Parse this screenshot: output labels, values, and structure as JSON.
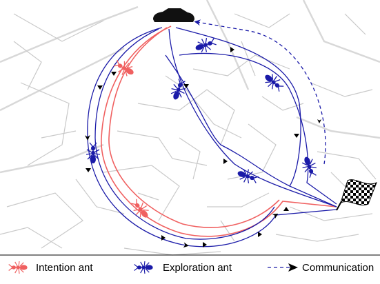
{
  "legend": [
    {
      "label": "Intention ant"
    },
    {
      "label": "Exploration ant"
    },
    {
      "label": "Communication"
    }
  ]
}
